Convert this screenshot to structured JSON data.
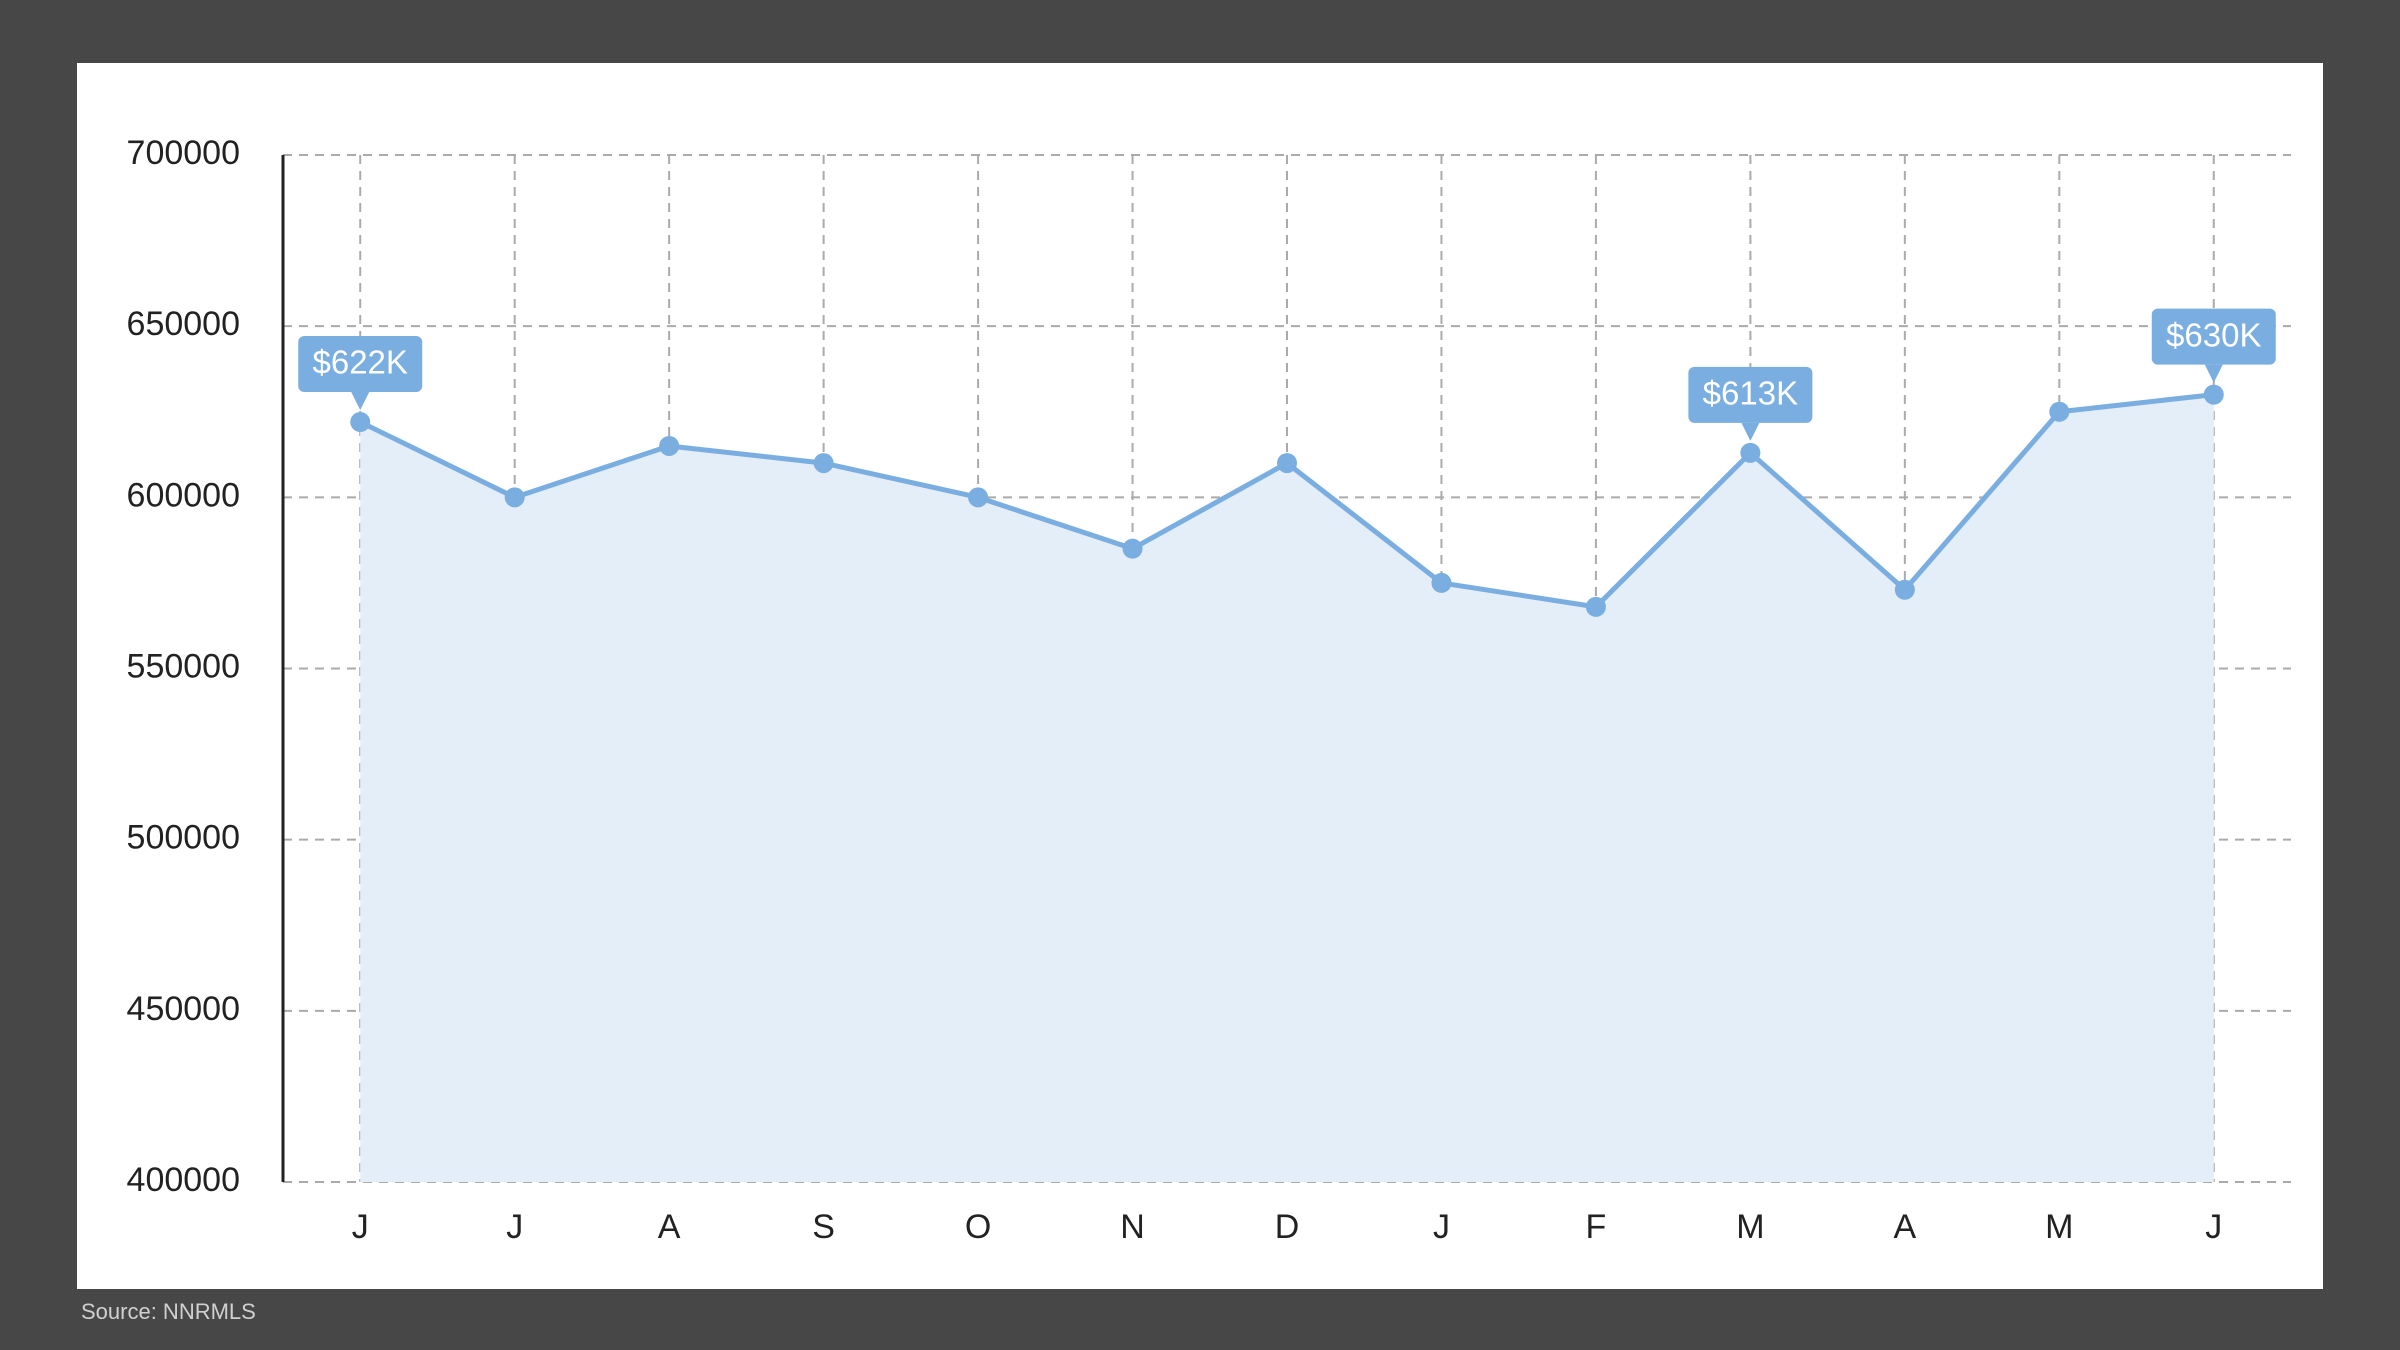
{
  "chart_data": {
    "type": "area-line",
    "categories": [
      "J",
      "J",
      "A",
      "S",
      "O",
      "N",
      "D",
      "J",
      "F",
      "M",
      "A",
      "M",
      "J"
    ],
    "values": [
      622000,
      600000,
      615000,
      610000,
      600000,
      585000,
      610000,
      575000,
      568000,
      613000,
      573000,
      625000,
      630000
    ],
    "value_labels": [
      "$622K",
      null,
      null,
      null,
      null,
      null,
      null,
      null,
      null,
      "$613K",
      null,
      null,
      "$630K"
    ],
    "color": "#7aaee0",
    "fill": "#e4eef9",
    "ylim": [
      400000,
      700000
    ],
    "yticks": [
      400000,
      450000,
      500000,
      550000,
      600000,
      650000,
      700000
    ],
    "grid": true,
    "source": "Source: NNRMLS"
  }
}
